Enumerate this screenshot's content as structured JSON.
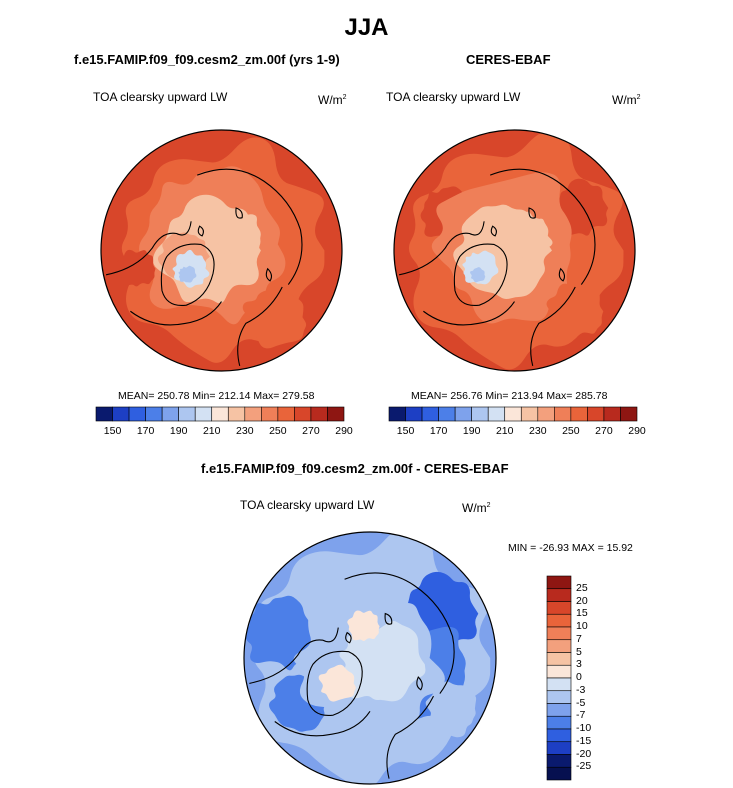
{
  "figure": {
    "title": "JJA",
    "panels": [
      {
        "heading": "f.e15.FAMIP.f09_f09.cesm2_zm.00f (yrs 1-9)",
        "variable": "TOA clearsky upward LW",
        "units": "W/m",
        "units_sup": "2",
        "stats": "MEAN= 250.78  Min= 212.14  Max= 279.58"
      },
      {
        "heading": "CERES-EBAF",
        "variable": "TOA clearsky upward LW",
        "units": "W/m",
        "units_sup": "2",
        "stats": "MEAN= 256.76  Min= 213.94  Max= 285.78"
      },
      {
        "heading": "f.e15.FAMIP.f09_f09.cesm2_zm.00f - CERES-EBAF",
        "variable": "TOA clearsky upward LW",
        "units": "W/m",
        "units_sup": "2",
        "stats": "MIN = -26.93 MAX =  15.92"
      }
    ]
  },
  "chart_data": [
    {
      "type": "heatmap",
      "projection": "north-polar-stereographic",
      "title": "f.e15.FAMIP.f09_f09.cesm2_zm.00f (yrs 1-9)",
      "variable": "TOA clearsky upward LW",
      "units": "W/m2",
      "season": "JJA",
      "mean": 250.78,
      "min": 212.14,
      "max": 279.58,
      "colorbar": {
        "orientation": "horizontal",
        "levels": [
          150,
          170,
          190,
          210,
          230,
          250,
          270,
          290
        ],
        "colors": [
          "#0a1a6e",
          "#1d3fc4",
          "#2f5fe0",
          "#4c7fe8",
          "#7ea2ec",
          "#adc6f0",
          "#d3e1f3",
          "#fbe6d9",
          "#f6c3a4",
          "#f3a07d",
          "#ef7f58",
          "#e9643a",
          "#d8462a",
          "#b82a1e",
          "#8e1612"
        ]
      }
    },
    {
      "type": "heatmap",
      "projection": "north-polar-stereographic",
      "title": "CERES-EBAF",
      "variable": "TOA clearsky upward LW",
      "units": "W/m2",
      "season": "JJA",
      "mean": 256.76,
      "min": 213.94,
      "max": 285.78,
      "colorbar": {
        "orientation": "horizontal",
        "levels": [
          150,
          170,
          190,
          210,
          230,
          250,
          270,
          290
        ],
        "colors": [
          "#0a1a6e",
          "#1d3fc4",
          "#2f5fe0",
          "#4c7fe8",
          "#7ea2ec",
          "#adc6f0",
          "#d3e1f3",
          "#fbe6d9",
          "#f6c3a4",
          "#f3a07d",
          "#ef7f58",
          "#e9643a",
          "#d8462a",
          "#b82a1e",
          "#8e1612"
        ]
      }
    },
    {
      "type": "heatmap",
      "projection": "north-polar-stereographic",
      "title": "f.e15.FAMIP.f09_f09.cesm2_zm.00f - CERES-EBAF",
      "variable": "TOA clearsky upward LW",
      "units": "W/m2",
      "season": "JJA",
      "min": -26.93,
      "max": 15.92,
      "colorbar": {
        "orientation": "vertical",
        "levels": [
          "25",
          "20",
          "15",
          "10",
          "7",
          "5",
          "3",
          "0",
          "-3",
          "-5",
          "-7",
          "-10",
          "-15",
          "-20",
          "-25"
        ],
        "colors": [
          "#8e1612",
          "#b82a1e",
          "#d8462a",
          "#e9643a",
          "#ef7f58",
          "#f3a07d",
          "#f6c3a4",
          "#fbe6d9",
          "#d3e1f3",
          "#adc6f0",
          "#7ea2ec",
          "#4c7fe8",
          "#2f5fe0",
          "#1d3fc4",
          "#0a1a6e",
          "#061050"
        ]
      }
    }
  ]
}
